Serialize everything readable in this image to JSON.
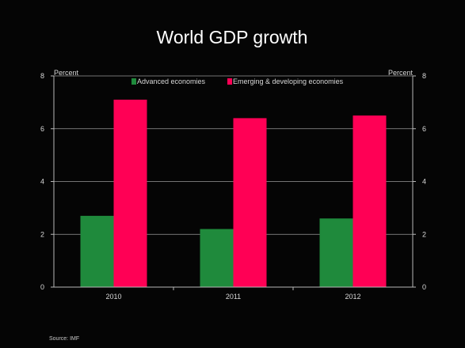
{
  "chart_data": {
    "type": "bar",
    "title": "World GDP growth",
    "y_unit_left": "Percent",
    "y_unit_right": "Percent",
    "categories": [
      "2010",
      "2011",
      "2012"
    ],
    "series": [
      {
        "name": "Advanced economies",
        "values": [
          2.7,
          2.2,
          2.6
        ],
        "color": "#1f8a3c"
      },
      {
        "name": "Emerging & developing economies",
        "values": [
          7.1,
          6.4,
          6.5
        ],
        "color": "#ff0055"
      }
    ],
    "ylim": [
      0,
      8
    ],
    "yticks": [
      "0",
      "2",
      "4",
      "6",
      "8"
    ],
    "grid": true,
    "legend_position": "top",
    "source": "Source: IMF"
  }
}
